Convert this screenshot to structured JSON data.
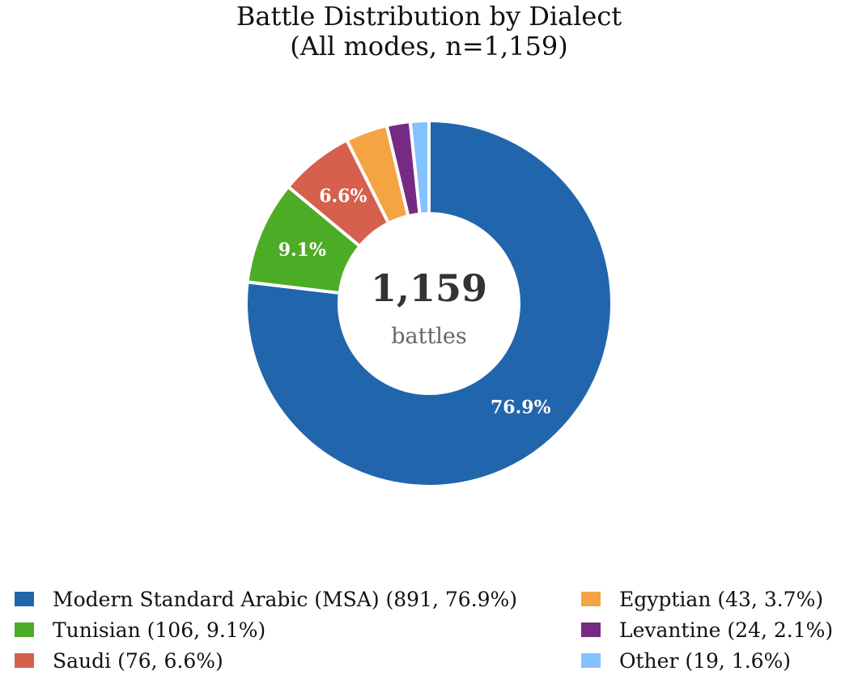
{
  "chart_data": {
    "type": "pie",
    "donut": true,
    "title": "Battle Distribution by Dialect",
    "subtitle": "(All modes, n=1,159)",
    "center_value": "1,159",
    "center_label": "battles",
    "total": 1159,
    "slices": [
      {
        "label": "Modern Standard Arabic (MSA)",
        "value": 891,
        "percent": 76.9,
        "pct_text": "76.9%",
        "legend_text": "Modern Standard Arabic (MSA)  (891, 76.9%)",
        "color": "#2166ac",
        "show_pct_label": true
      },
      {
        "label": "Tunisian",
        "value": 106,
        "percent": 9.1,
        "pct_text": "9.1%",
        "legend_text": "Tunisian  (106, 9.1%)",
        "color": "#4dac26",
        "show_pct_label": true
      },
      {
        "label": "Saudi",
        "value": 76,
        "percent": 6.6,
        "pct_text": "6.6%",
        "legend_text": "Saudi  (76, 6.6%)",
        "color": "#d6604d",
        "show_pct_label": true
      },
      {
        "label": "Egyptian",
        "value": 43,
        "percent": 3.7,
        "pct_text": "3.7%",
        "legend_text": "Egyptian  (43, 3.7%)",
        "color": "#f4a442",
        "show_pct_label": false
      },
      {
        "label": "Levantine",
        "value": 24,
        "percent": 2.1,
        "pct_text": "2.1%",
        "legend_text": "Levantine  (24, 2.1%)",
        "color": "#762a83",
        "show_pct_label": false
      },
      {
        "label": "Other",
        "value": 19,
        "percent": 1.6,
        "pct_text": "1.6%",
        "legend_text": "Other  (19, 1.6%)",
        "color": "#84c1ff",
        "show_pct_label": false
      }
    ],
    "legend_position": "bottom",
    "start_angle": "top",
    "direction": "clockwise"
  }
}
